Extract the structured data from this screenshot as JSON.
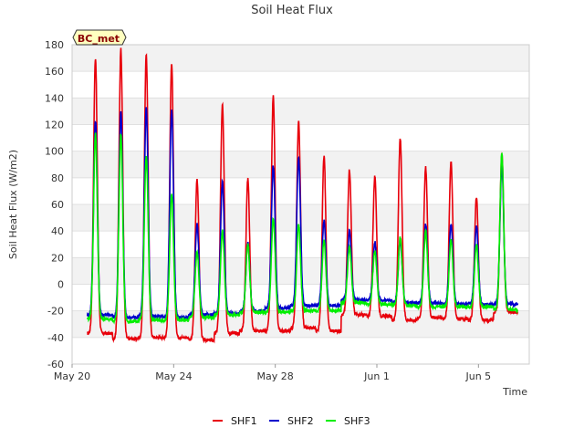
{
  "chart_data": {
    "type": "line",
    "title": "Soil Heat Flux",
    "xlabel": "Time",
    "ylabel": "Soil Heat Flux (W/m2)",
    "badge": "BC_met",
    "ylim": [
      -60,
      180
    ],
    "yticks": [
      -60,
      -40,
      -20,
      0,
      20,
      40,
      60,
      80,
      100,
      120,
      140,
      160,
      180
    ],
    "xlim": [
      0,
      18
    ],
    "x_unit": "days since May 20",
    "xticks": [
      {
        "value": 0,
        "label": "May 20"
      },
      {
        "value": 4,
        "label": "May 24"
      },
      {
        "value": 8,
        "label": "May 28"
      },
      {
        "value": 12,
        "label": "Jun 1"
      },
      {
        "value": 16,
        "label": "Jun 5"
      }
    ],
    "grid": "horizontal bands",
    "legend_position": "bottom-center",
    "series": [
      {
        "name": "SHF1",
        "color": "#e8000b",
        "daily_peak": [
          170,
          177,
          173,
          165,
          79,
          136,
          79,
          141,
          122,
          96,
          86,
          81,
          109,
          88,
          92,
          65,
          98
        ],
        "daily_min": [
          -37,
          -41,
          -40,
          -40,
          -42,
          -37,
          -35,
          -35,
          -33,
          -35,
          -23,
          -24,
          -27,
          -25,
          -26,
          -27,
          -21
        ]
      },
      {
        "name": "SHF2",
        "color": "#0000cc",
        "daily_peak": [
          123,
          130,
          133,
          131,
          45,
          77,
          31,
          89,
          95,
          48,
          40,
          32,
          33,
          45,
          45,
          44,
          88
        ],
        "daily_min": [
          -23,
          -25,
          -24,
          -25,
          -23,
          -22,
          -20,
          -18,
          -16,
          -16,
          -12,
          -12,
          -14,
          -14,
          -15,
          -15,
          -15
        ]
      },
      {
        "name": "SHF3",
        "color": "#00ee00",
        "daily_peak": [
          113,
          113,
          97,
          68,
          25,
          40,
          30,
          50,
          45,
          33,
          28,
          25,
          35,
          40,
          34,
          30,
          98
        ],
        "daily_min": [
          -26,
          -28,
          -27,
          -27,
          -25,
          -23,
          -21,
          -21,
          -20,
          -20,
          -14,
          -15,
          -16,
          -17,
          -17,
          -17,
          -19
        ]
      }
    ]
  }
}
